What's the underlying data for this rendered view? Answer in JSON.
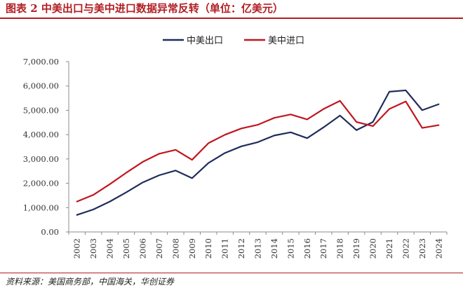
{
  "title": "图表 2 中美出口与美中进口数据异常反转（单位：亿美元）",
  "source": "资料来源：美国商务部，中国海关，华创证券",
  "chart_data": {
    "type": "line",
    "title": "",
    "xlabel": "",
    "ylabel": "",
    "x": [
      "2002",
      "2003",
      "2004",
      "2005",
      "2006",
      "2007",
      "2008",
      "2009",
      "2010",
      "2011",
      "2012",
      "2013",
      "2014",
      "2015",
      "2016",
      "2017",
      "2018",
      "2019",
      "2020",
      "2021",
      "2022",
      "2023",
      "2024"
    ],
    "ylim": [
      0,
      7000
    ],
    "yticks": [
      0,
      1000,
      2000,
      3000,
      4000,
      5000,
      6000,
      7000
    ],
    "ytick_labels": [
      "0.00",
      "1,000.00",
      "2,000.00",
      "3,000.00",
      "4,000.00",
      "5,000.00",
      "6,000.00",
      "7,000.00"
    ],
    "grid": false,
    "legend_position": "top-center",
    "series": [
      {
        "name": "中美出口",
        "color": "#1f2d5c",
        "values": [
          700,
          925,
          1250,
          1630,
          2035,
          2330,
          2525,
          2210,
          2835,
          3245,
          3520,
          3690,
          3965,
          4095,
          3855,
          4300,
          4785,
          4185,
          4520,
          5765,
          5820,
          5005,
          5250
        ]
      },
      {
        "name": "美中进口",
        "color": "#c0171f",
        "values": [
          1250,
          1525,
          1965,
          2435,
          2880,
          3215,
          3375,
          2965,
          3650,
          3995,
          4255,
          4405,
          4690,
          4830,
          4625,
          5055,
          5390,
          4520,
          4350,
          5055,
          5365,
          4275,
          4390
        ]
      }
    ]
  }
}
